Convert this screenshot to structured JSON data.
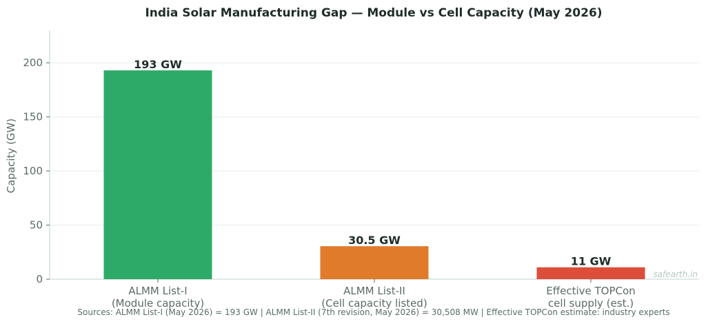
{
  "chart_data": {
    "type": "bar",
    "title": "India Solar Manufacturing Gap — Module vs Cell Capacity (May 2026)",
    "ylabel": "Capacity (GW)",
    "xlabel": "",
    "ylim": [
      0,
      230
    ],
    "yticks": [
      0,
      50,
      100,
      150,
      200
    ],
    "grid": "horizontal",
    "categories": [
      [
        "ALMM List-I",
        "(Module capacity)"
      ],
      [
        "ALMM List-II",
        "(Cell capacity listed)"
      ],
      [
        "Effective TOPCon",
        "cell supply (est.)"
      ]
    ],
    "values": [
      193,
      30.5,
      11
    ],
    "data_labels": [
      "193 GW",
      "30.5 GW",
      "11 GW"
    ],
    "colors": [
      "#2eaa68",
      "#e07b2c",
      "#dd4e3a"
    ]
  },
  "footer": {
    "source": "Sources: ALMM List-I (May 2026) = 193 GW  |  ALMM List-II (7th revision, May 2026) = 30,508 MW  |  Effective TOPCon estimate: industry experts",
    "watermark": "safearth.in"
  }
}
